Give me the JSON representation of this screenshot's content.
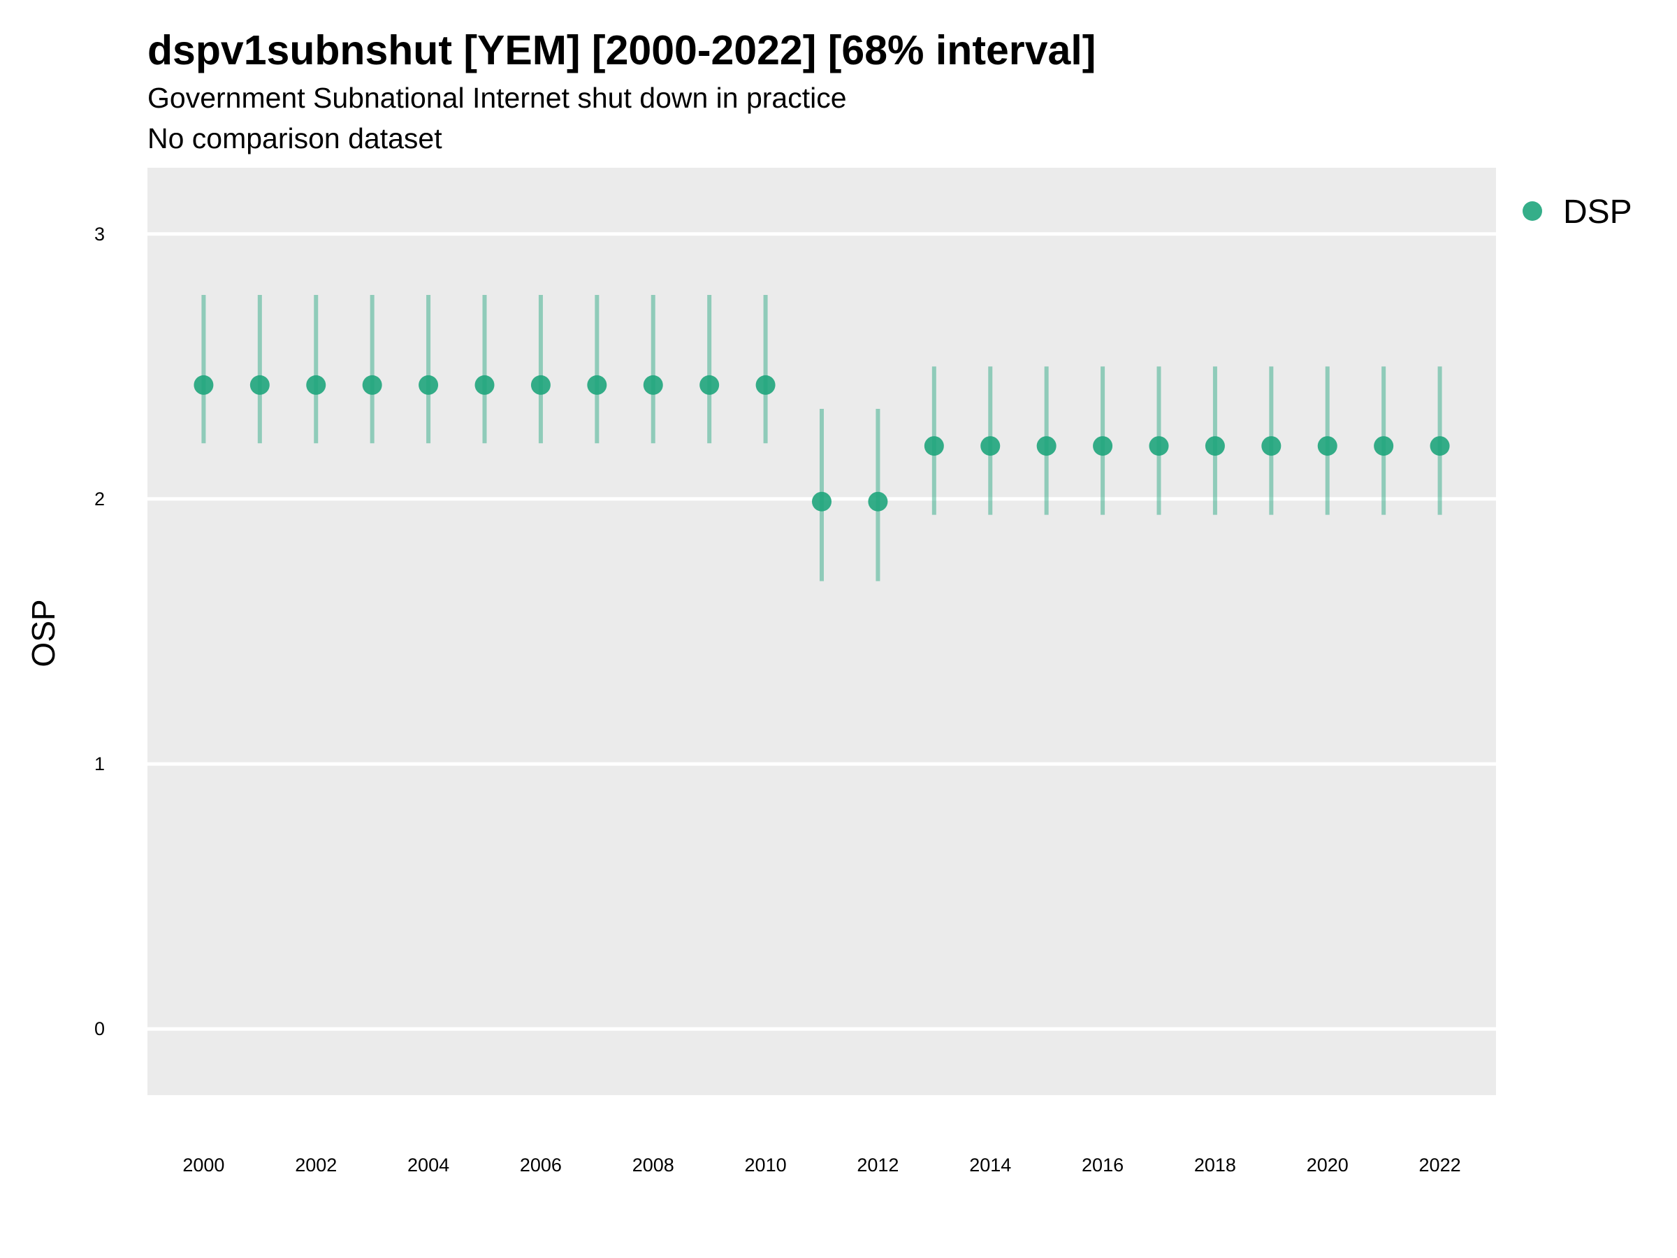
{
  "chart_data": {
    "type": "scatter",
    "title": "dspv1subnshut [YEM] [2000-2022] [68% interval]",
    "subtitle": "Government Subnational Internet shut down in practice",
    "subtitle2": "No comparison dataset",
    "xlabel": "",
    "ylabel": "OSP",
    "xlim": [
      1999,
      2023
    ],
    "ylim": [
      -0.25,
      3.25
    ],
    "x_ticks": [
      "2000",
      "2002",
      "2004",
      "2006",
      "2008",
      "2010",
      "2012",
      "2014",
      "2016",
      "2018",
      "2020",
      "2022"
    ],
    "y_ticks": [
      "0",
      "1",
      "2",
      "3"
    ],
    "grid": true,
    "legend_position": "top-right",
    "series": [
      {
        "name": "DSP",
        "color": "#1fa57c",
        "x": [
          2000,
          2001,
          2002,
          2003,
          2004,
          2005,
          2006,
          2007,
          2008,
          2009,
          2010,
          2011,
          2012,
          2013,
          2014,
          2015,
          2016,
          2017,
          2018,
          2019,
          2020,
          2021,
          2022
        ],
        "y": [
          2.43,
          2.43,
          2.43,
          2.43,
          2.43,
          2.43,
          2.43,
          2.43,
          2.43,
          2.43,
          2.43,
          1.99,
          1.99,
          2.2,
          2.2,
          2.2,
          2.2,
          2.2,
          2.2,
          2.2,
          2.2,
          2.2,
          2.2
        ],
        "lower": [
          2.21,
          2.21,
          2.21,
          2.21,
          2.21,
          2.21,
          2.21,
          2.21,
          2.21,
          2.21,
          2.21,
          1.69,
          1.69,
          1.94,
          1.94,
          1.94,
          1.94,
          1.94,
          1.94,
          1.94,
          1.94,
          1.94,
          1.94
        ],
        "upper": [
          2.77,
          2.77,
          2.77,
          2.77,
          2.77,
          2.77,
          2.77,
          2.77,
          2.77,
          2.77,
          2.77,
          2.34,
          2.34,
          2.5,
          2.5,
          2.5,
          2.5,
          2.5,
          2.5,
          2.5,
          2.5,
          2.5,
          2.5
        ]
      }
    ]
  }
}
